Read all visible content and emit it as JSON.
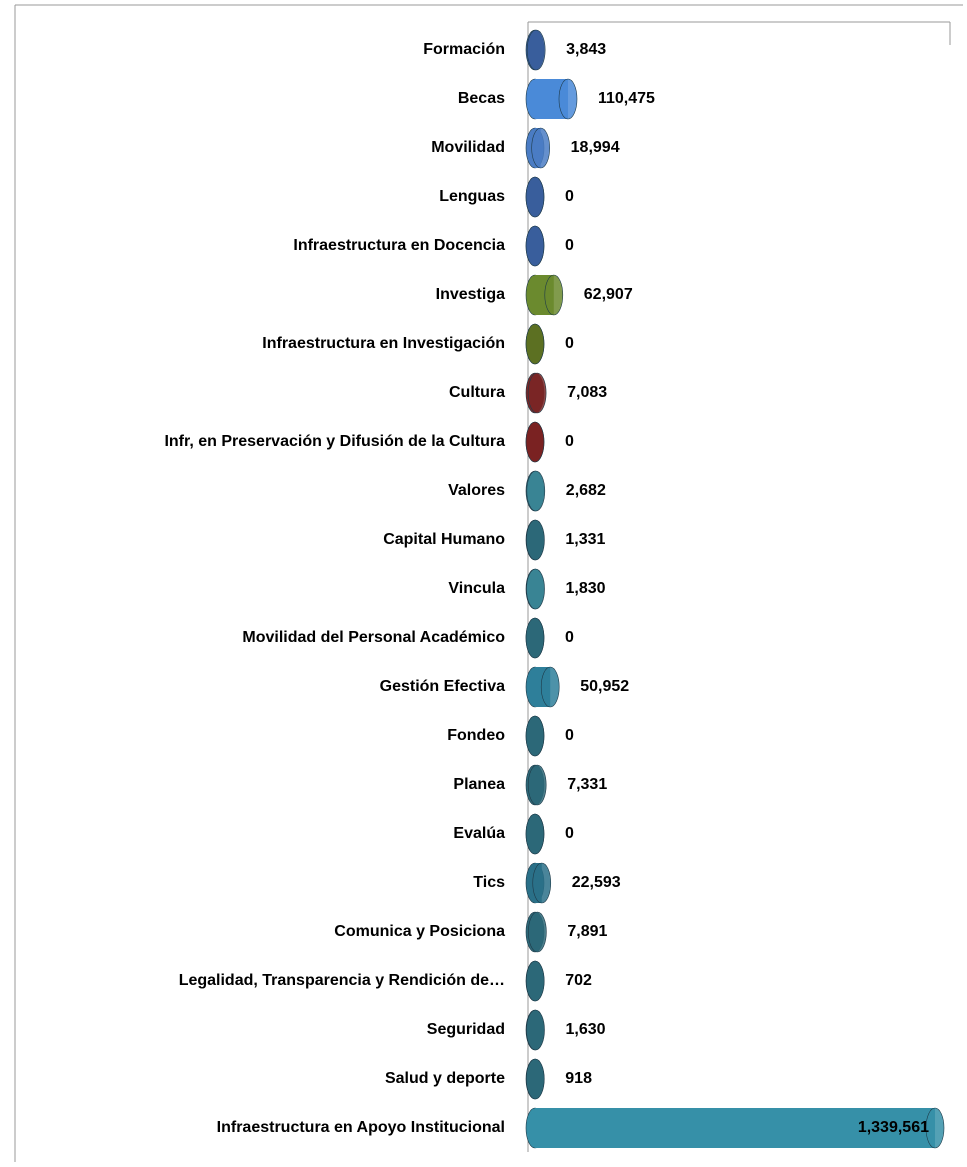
{
  "chart_data": {
    "type": "bar",
    "categories": [
      "Formación",
      "Becas",
      "Movilidad",
      "Lenguas",
      "Infraestructura en Docencia",
      "Investiga",
      "Infraestructura en Investigación",
      "Cultura",
      "Infr, en Preservación y Difusión de la Cultura",
      "Valores",
      "Capital Humano",
      "Vincula",
      "Movilidad del Personal Académico",
      "Gestión Efectiva",
      "Fondeo",
      "Planea",
      "Evalúa",
      "Tics",
      "Comunica y Posiciona",
      "Legalidad, Transparencia y Rendición de…",
      "Seguridad",
      "Salud y deporte",
      "Infraestructura en Apoyo Institucional"
    ],
    "values": [
      3843,
      110475,
      18994,
      0,
      0,
      62907,
      0,
      7083,
      0,
      2682,
      1331,
      1830,
      0,
      50952,
      0,
      7331,
      0,
      22593,
      7891,
      702,
      1630,
      918,
      1339561
    ],
    "value_labels": [
      "3,843",
      "110,475",
      "18,994",
      "0",
      "0",
      "62,907",
      "0",
      "7,083",
      "0",
      "2,682",
      "1,331",
      "1,830",
      "0",
      "50,952",
      "0",
      "7,331",
      "0",
      "22,593",
      "7,891",
      "702",
      "1,630",
      "918",
      "1,339,561"
    ],
    "colors": [
      "#3a5e9c",
      "#4a8ad8",
      "#4a7cc4",
      "#3a5e9c",
      "#3a5e9c",
      "#6b8a2e",
      "#5c7022",
      "#7a2626",
      "#7a2222",
      "#3a8494",
      "#2d6878",
      "#3a8494",
      "#2d6878",
      "#2e7f9a",
      "#2d6878",
      "#2d6878",
      "#2d6878",
      "#2a7088",
      "#2d6878",
      "#2d6878",
      "#2d6878",
      "#2d6878",
      "#3690a8"
    ]
  }
}
